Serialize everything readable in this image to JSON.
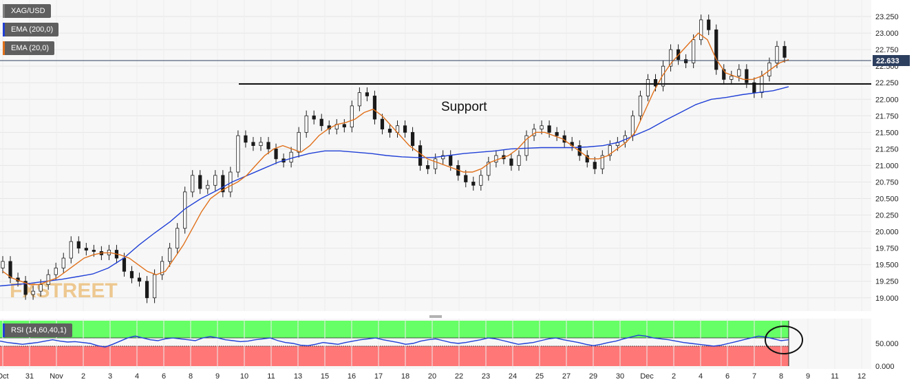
{
  "legend": {
    "symbol": "XAG/USD",
    "ema200": "EMA (200,0)",
    "ema20": "EMA (20,0)",
    "rsi": "RSI (14,60,40,1)"
  },
  "colors": {
    "price_candles": "#1a1a1a",
    "ema200": "#1f3fd6",
    "ema20": "#e0701a",
    "rsi_line": "#1f3fd6",
    "rsi_upper_zone": "#66ff66",
    "rsi_lower_zone": "#ff7777",
    "price_tag": "#2d3f5f",
    "watermark": "#e6a23c"
  },
  "watermark": "FXSTREET",
  "annotation": "Support",
  "current_price": "22.633",
  "chart_data": [
    {
      "type": "candlestick",
      "title": "XAG/USD",
      "ylim": [
        18.8,
        23.5
      ],
      "y_ticks": [
        "19.000",
        "19.250",
        "19.500",
        "19.750",
        "20.000",
        "20.250",
        "20.500",
        "20.750",
        "21.000",
        "21.250",
        "21.500",
        "21.750",
        "22.000",
        "22.250",
        "22.500",
        "22.750",
        "23.000",
        "23.250"
      ],
      "x_ticks": [
        "Oct",
        "31",
        "Nov",
        "2",
        "3",
        "4",
        "6",
        "8",
        "9",
        "10",
        "11",
        "13",
        "15",
        "16",
        "17",
        "18",
        "20",
        "22",
        "23",
        "24",
        "25",
        "27",
        "29",
        "30",
        "Dec",
        "2",
        "4",
        "6",
        "7",
        "8",
        "9",
        "11",
        "12"
      ],
      "close_approx": [
        19.55,
        19.3,
        19.25,
        19.05,
        19.1,
        19.2,
        19.35,
        19.45,
        19.6,
        19.85,
        19.75,
        19.72,
        19.7,
        19.65,
        19.72,
        19.6,
        19.4,
        19.3,
        19.25,
        19.0,
        19.35,
        19.55,
        19.75,
        20.05,
        20.6,
        20.85,
        20.65,
        20.7,
        20.85,
        20.6,
        20.9,
        21.45,
        21.35,
        21.3,
        21.35,
        21.25,
        21.1,
        21.05,
        21.2,
        21.5,
        21.75,
        21.7,
        21.6,
        21.55,
        21.62,
        21.58,
        21.9,
        22.1,
        22.05,
        21.7,
        21.55,
        21.5,
        21.6,
        21.5,
        21.3,
        21.0,
        20.95,
        21.1,
        21.15,
        21.0,
        20.85,
        20.75,
        20.7,
        20.85,
        21.05,
        21.15,
        21.1,
        21.0,
        21.15,
        21.45,
        21.55,
        21.6,
        21.5,
        21.45,
        21.35,
        21.3,
        21.15,
        21.05,
        20.95,
        21.15,
        21.3,
        21.35,
        21.45,
        21.75,
        22.05,
        22.3,
        22.2,
        22.5,
        22.75,
        22.6,
        22.55,
        22.9,
        23.2,
        23.05,
        22.45,
        22.3,
        22.35,
        22.45,
        22.25,
        22.1,
        22.35,
        22.55,
        22.8,
        22.633
      ],
      "ema20_approx": [
        19.4,
        19.3,
        19.25,
        19.2,
        19.2,
        19.25,
        19.3,
        19.4,
        19.5,
        19.6,
        19.65,
        19.68,
        19.68,
        19.65,
        19.6,
        19.5,
        19.4,
        19.35,
        19.4,
        19.6,
        19.8,
        20.05,
        20.3,
        20.5,
        20.6,
        20.68,
        20.75,
        20.85,
        21.0,
        21.15,
        21.25,
        21.3,
        21.25,
        21.2,
        21.3,
        21.45,
        21.55,
        21.62,
        21.65,
        21.7,
        21.8,
        21.85,
        21.75,
        21.6,
        21.45,
        21.3,
        21.2,
        21.1,
        21.05,
        21.0,
        20.95,
        20.9,
        20.9,
        20.95,
        21.05,
        21.1,
        21.15,
        21.25,
        21.4,
        21.5,
        21.5,
        21.45,
        21.4,
        21.3,
        21.2,
        21.1,
        21.1,
        21.15,
        21.25,
        21.35,
        21.5,
        21.8,
        22.1,
        22.35,
        22.55,
        22.7,
        22.85,
        23.0,
        22.9,
        22.6,
        22.4,
        22.35,
        22.3,
        22.3,
        22.35,
        22.45,
        22.55,
        22.6
      ],
      "ema200_approx": [
        19.18,
        19.2,
        19.22,
        19.25,
        19.28,
        19.32,
        19.36,
        19.45,
        19.6,
        19.8,
        19.98,
        20.15,
        20.35,
        20.5,
        20.62,
        20.75,
        20.85,
        20.95,
        21.05,
        21.12,
        21.18,
        21.22,
        21.22,
        21.2,
        21.18,
        21.15,
        21.13,
        21.12,
        21.12,
        21.15,
        21.18,
        21.2,
        21.22,
        21.25,
        21.26,
        21.27,
        21.27,
        21.27,
        21.28,
        21.3,
        21.35,
        21.45,
        21.55,
        21.68,
        21.8,
        21.92,
        22.0,
        22.03,
        22.07,
        22.1,
        22.13,
        22.19
      ],
      "support_level": 22.27,
      "series": [
        {
          "name": "EMA (200,0)"
        },
        {
          "name": "EMA (20,0)"
        }
      ]
    },
    {
      "type": "line",
      "title": "RSI (14,60,40,1)",
      "ylim": [
        0,
        100
      ],
      "y_ticks": [
        "50.000",
        "0.000"
      ],
      "upper_level": 60,
      "lower_level": 40,
      "values_approx": [
        55,
        52,
        50,
        48,
        50,
        52,
        55,
        58,
        55,
        53,
        54,
        52,
        50,
        45,
        42,
        48,
        55,
        62,
        66,
        62,
        58,
        56,
        60,
        62,
        60,
        58,
        56,
        62,
        65,
        62,
        58,
        56,
        54,
        55,
        58,
        60,
        62,
        56,
        52,
        50,
        46,
        45,
        48,
        52,
        50,
        48,
        52,
        55,
        58,
        60,
        62,
        58,
        55,
        52,
        48,
        50,
        55,
        58,
        60,
        56,
        52,
        50,
        52,
        55,
        58,
        62,
        60,
        56,
        52,
        48,
        50,
        52,
        56,
        60,
        62,
        58,
        55,
        52,
        48,
        45,
        48,
        52,
        55,
        60,
        64,
        68,
        66,
        62,
        60,
        58,
        55,
        52,
        50,
        48,
        46,
        44,
        46,
        50,
        54,
        58,
        62,
        66,
        64,
        60,
        56,
        58
      ]
    }
  ]
}
